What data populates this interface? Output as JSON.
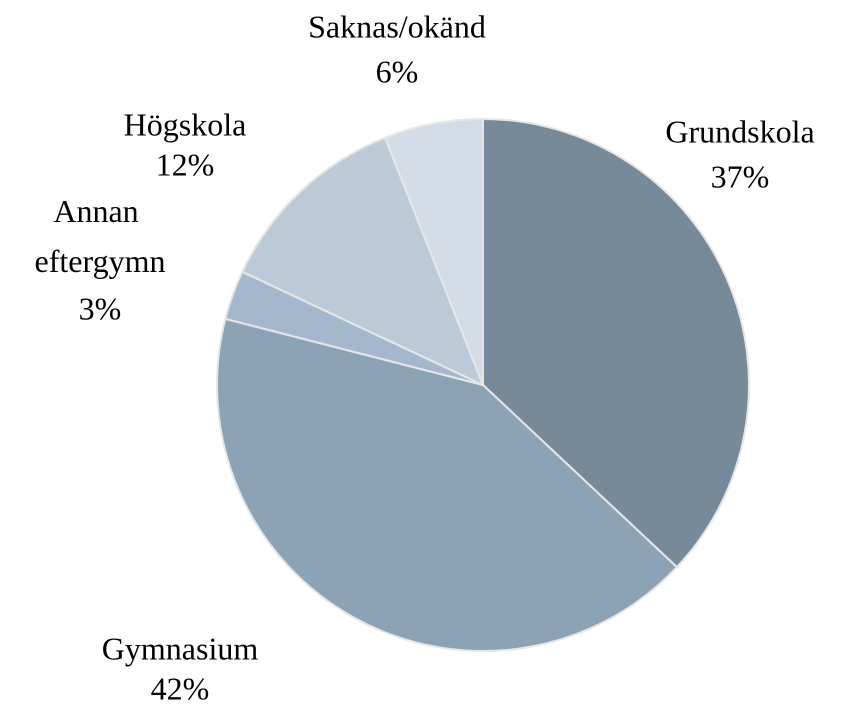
{
  "chart_data": {
    "type": "pie",
    "categories": [
      "Grundskola",
      "Gymnasium",
      "Annan eftergymn",
      "Högskola",
      "Saknas/okänd"
    ],
    "values": [
      37,
      42,
      3,
      12,
      6
    ],
    "value_labels": [
      "37%",
      "42%",
      "3%",
      "12%",
      "6%"
    ],
    "colors": [
      "#778a99",
      "#8ca2b5",
      "#a3b8cc",
      "#bccad8",
      "#d3dce6"
    ]
  }
}
